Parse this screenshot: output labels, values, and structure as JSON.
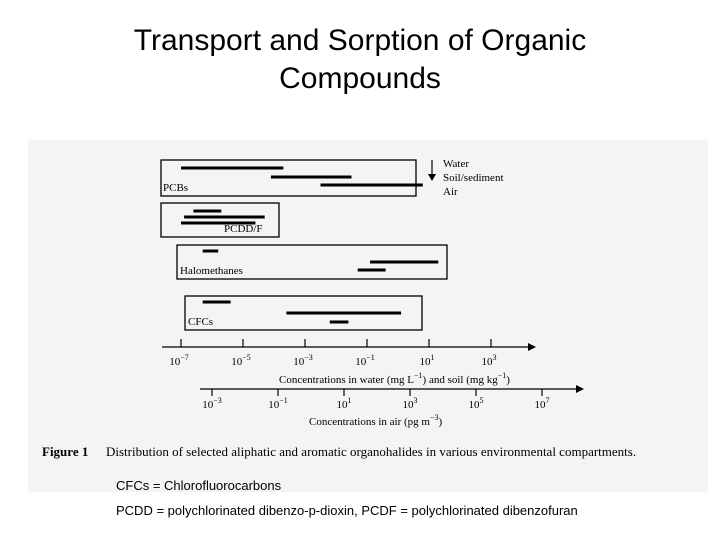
{
  "title": {
    "line1": "Transport and Sorption of Organic",
    "line2": "Compounds"
  },
  "figure": {
    "groups": [
      {
        "label": "PCBs",
        "bars": [
          {
            "phase": "Water",
            "from_log": -7,
            "to_log": -3.7
          },
          {
            "phase": "Soil/sediment",
            "from_log": -4.1,
            "to_log": -1.5
          },
          {
            "phase": "Air",
            "from_log": -2.5,
            "to_log": 0.8
          }
        ]
      },
      {
        "label": "PCDD/F",
        "bars": [
          {
            "phase": "Water",
            "from_log": -6.6,
            "to_log": -5.7
          },
          {
            "phase": "Soil/sediment",
            "from_log": -6.9,
            "to_log": -4.3
          },
          {
            "phase": "Air",
            "from_log": -7,
            "to_log": -4.6
          }
        ]
      },
      {
        "label": "Halomethanes",
        "bars": [
          {
            "phase": "Water",
            "from_log": -6.3,
            "to_log": -5.8
          },
          {
            "phase": "Soil/sediment",
            "from_log": -0.9,
            "to_log": 1.3
          },
          {
            "phase": "Air",
            "from_log": -1.3,
            "to_log": -0.4
          }
        ]
      },
      {
        "label": "CFCs",
        "bars": [
          {
            "phase": "Water",
            "from_log": -6.3,
            "to_log": -5.4
          },
          {
            "phase": "Soil/sediment",
            "from_log": -3.6,
            "to_log": 0.1
          },
          {
            "phase": "Air",
            "from_log": -2.2,
            "to_log": -1.6
          }
        ]
      }
    ],
    "legend": {
      "water": "Water",
      "soil": "Soil/sediment",
      "air": "Air"
    },
    "axis1": {
      "ticks": [
        "10^-7",
        "10^-5",
        "10^-3",
        "10^-1",
        "10^1",
        "10^3"
      ],
      "label_text": "Concentrations in water (mg L",
      "label_exp1": "−1",
      "label_mid": ") and soil (mg kg",
      "label_exp2": "−1",
      "label_end": ")"
    },
    "axis2": {
      "ticks": [
        "10^-3",
        "10^-1",
        "10^1",
        "10^3",
        "10^5",
        "10^7"
      ],
      "label_text": "Concentrations in air (pg m",
      "label_exp": "−3",
      "label_end": ")"
    },
    "caption": {
      "label": "Figure 1",
      "text": "Distribution of selected aliphatic and aromatic organohalides in various environmental compartments."
    }
  },
  "notes": {
    "cfc": "CFCs = Chlorofluorocarbons",
    "pcdd": "PCDD = polychlorinated dibenzo-p-dioxin, PCDF = polychlorinated dibenzofuran"
  }
}
